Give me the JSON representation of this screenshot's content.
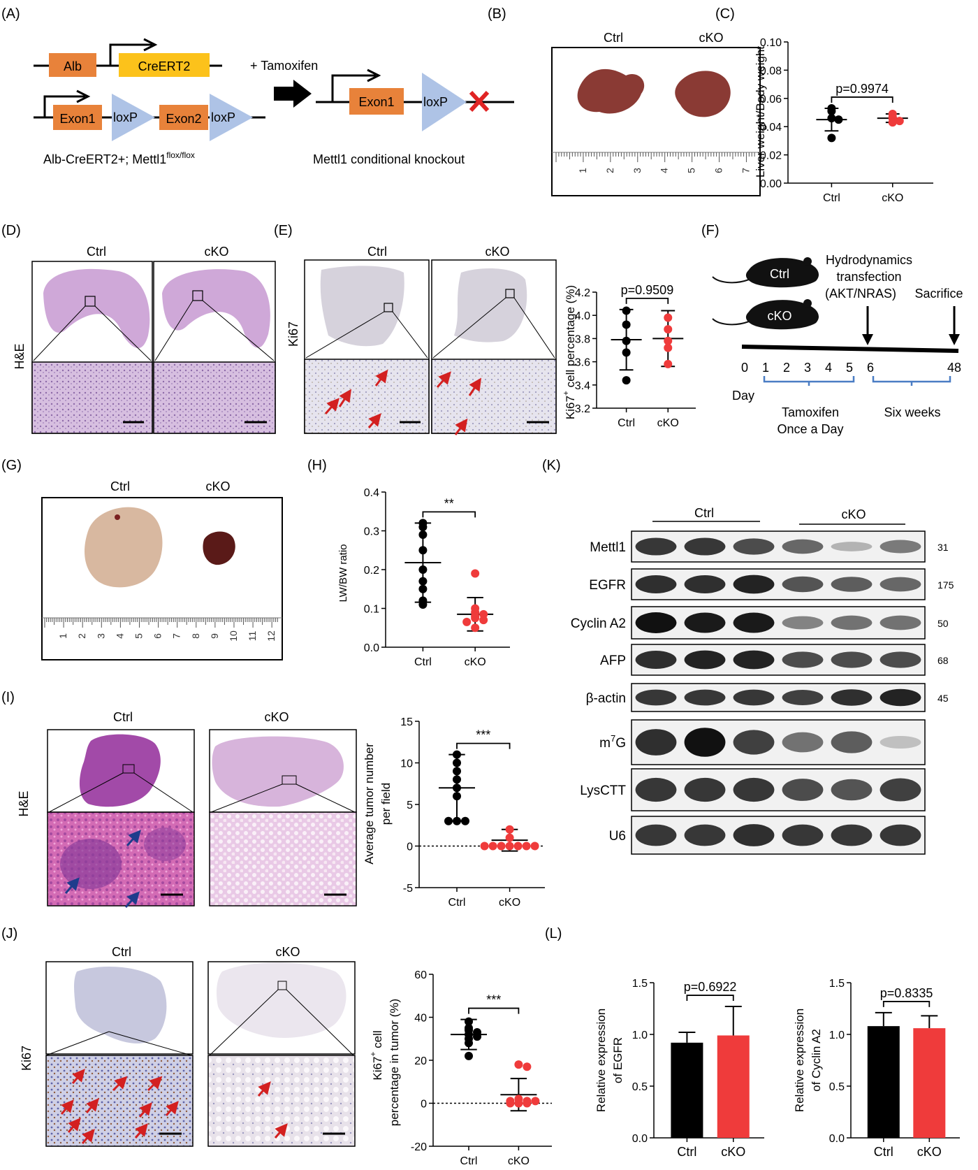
{
  "labels": {
    "A": "(A)",
    "B": "(B)",
    "C": "(C)",
    "D": "(D)",
    "E": "(E)",
    "F": "(F)",
    "G": "(G)",
    "H": "(H)",
    "I": "(I)",
    "J": "(J)",
    "K": "(K)",
    "L": "(L)"
  },
  "groups": {
    "ctrl": "Ctrl",
    "cko": "cKO"
  },
  "colors": {
    "ctrl": "#000000",
    "cko": "#ef3b3b",
    "orange": "#e8823a",
    "yellow": "#fcc21b",
    "loxp": "#aec3e6",
    "he": "#c9a2d4",
    "ihc": "#e9e3ea",
    "bracket": "#4a7dc4"
  },
  "panelA": {
    "alb": "Alb",
    "creert2": "CreERT2",
    "exon1": "Exon1",
    "exon2": "Exon2",
    "loxp": "loxP",
    "tamoxifen": "+ Tamoxifen",
    "genotype_main": "Alb-CreERT2+; Mettl1",
    "genotype_sup": "flox/flox",
    "result": "Mettl1 conditional knockout"
  },
  "panelD": {
    "stain": "H&E"
  },
  "panelE": {
    "stain": "Ki67"
  },
  "panelF": {
    "ctrl": "Ctrl",
    "cko": "cKO",
    "transfection": [
      "Hydrodynamics",
      "transfection",
      "(AKT/NRAS)"
    ],
    "sacrifice": "Sacrifice",
    "days": [
      "0",
      "1",
      "2",
      "3",
      "4",
      "5",
      "6",
      "48"
    ],
    "day_label": "Day",
    "tamoxifen": [
      "Tamoxifen",
      "Once a Day"
    ],
    "six_weeks": "Six weeks"
  },
  "ruler_B": [
    "1",
    "2",
    "3",
    "4",
    "5",
    "6",
    "7"
  ],
  "ruler_G": [
    "1",
    "2",
    "3",
    "4",
    "5",
    "6",
    "7",
    "8",
    "9",
    "10",
    "11",
    "12"
  ],
  "panelI": {
    "stain": "H&E"
  },
  "panelJ": {
    "stain": "Ki67"
  },
  "chart_data": [
    {
      "id": "C",
      "type": "scatter",
      "ylabel": "Liver weight/Body weight",
      "ylim": [
        0,
        0.1
      ],
      "yticks": [
        "0.00",
        "0.02",
        "0.04",
        "0.06",
        "0.08",
        "0.10"
      ],
      "categories": [
        "Ctrl",
        "cKO"
      ],
      "annotation": "p=0.9974",
      "series": [
        {
          "name": "Ctrl",
          "points": [
            0.053,
            0.051,
            0.046,
            0.045,
            0.032
          ],
          "mean": 0.045,
          "sd": 0.008
        },
        {
          "name": "cKO",
          "points": [
            0.049,
            0.047,
            0.046,
            0.044,
            0.043
          ],
          "mean": 0.046,
          "sd": 0.003
        }
      ]
    },
    {
      "id": "E",
      "type": "scatter",
      "ylabel": "Ki67+ cell percentage (%)",
      "ylabel_main": "Ki67",
      "ylabel_sup": "+",
      "ylabel_rest": " cell percentage (%)",
      "ylim": [
        3.2,
        4.2
      ],
      "yticks": [
        "3.2",
        "3.4",
        "3.6",
        "3.8",
        "4.0",
        "4.2"
      ],
      "categories": [
        "Ctrl",
        "cKO"
      ],
      "annotation": "p=0.9509",
      "series": [
        {
          "name": "Ctrl",
          "points": [
            4.04,
            3.92,
            3.78,
            3.68,
            3.44
          ],
          "mean": 3.79,
          "sd": 0.26
        },
        {
          "name": "cKO",
          "points": [
            3.98,
            3.88,
            3.78,
            3.72,
            3.58
          ],
          "mean": 3.8,
          "sd": 0.24
        }
      ]
    },
    {
      "id": "H",
      "type": "scatter",
      "ylabel": "LW/BW ratio",
      "ylim": [
        0,
        0.4
      ],
      "yticks": [
        "0.0",
        "0.1",
        "0.2",
        "0.3",
        "0.4"
      ],
      "categories": [
        "Ctrl",
        "cKO"
      ],
      "annotation": "**",
      "series": [
        {
          "name": "Ctrl",
          "points": [
            0.32,
            0.31,
            0.29,
            0.25,
            0.2,
            0.17,
            0.15,
            0.12,
            0.11
          ],
          "mean": 0.218,
          "sd": 0.102
        },
        {
          "name": "cKO",
          "points": [
            0.19,
            0.1,
            0.09,
            0.085,
            0.08,
            0.075,
            0.07,
            0.065,
            0.05
          ],
          "mean": 0.085,
          "sd": 0.043
        }
      ]
    },
    {
      "id": "I",
      "type": "scatter",
      "ylabel": [
        "Average tumor number",
        "per field"
      ],
      "ylim": [
        -5,
        15
      ],
      "yticks": [
        "-5",
        "0",
        "5",
        "10",
        "15"
      ],
      "categories": [
        "Ctrl",
        "cKO"
      ],
      "annotation": "***",
      "baseline": 0,
      "series": [
        {
          "name": "Ctrl",
          "points": [
            11,
            10,
            9,
            8,
            7,
            6,
            3,
            3,
            3
          ],
          "mean": 7,
          "sd": 4
        },
        {
          "name": "cKO",
          "points": [
            2,
            1,
            0,
            0,
            0,
            0,
            0,
            0,
            0
          ],
          "mean": 0.7,
          "sd": 1.3
        }
      ]
    },
    {
      "id": "J",
      "type": "scatter",
      "ylabel_main": "Ki67",
      "ylabel_sup": "+",
      "ylabel_line1_rest": " cell",
      "ylabel_line2": "percentage in tumor (%)",
      "ylim": [
        -20,
        60
      ],
      "yticks": [
        "-20",
        "0",
        "20",
        "40",
        "60"
      ],
      "categories": [
        "Ctrl",
        "cKO"
      ],
      "annotation": "***",
      "baseline": 0,
      "series": [
        {
          "name": "Ctrl",
          "points": [
            38,
            35,
            34,
            33,
            32,
            31,
            30,
            28,
            22
          ],
          "mean": 32,
          "sd": 7
        },
        {
          "name": "cKO",
          "points": [
            18,
            17,
            2,
            1,
            1,
            1,
            0,
            0,
            0
          ],
          "mean": 4,
          "sd": 7.5
        }
      ]
    },
    {
      "id": "K",
      "type": "table",
      "groups": [
        {
          "name": "Ctrl",
          "lanes": 3
        },
        {
          "name": "cKO",
          "lanes": 3
        }
      ],
      "bands": [
        {
          "name": "Mettl1",
          "mw": "31",
          "intensity": [
            0.8,
            0.8,
            0.7,
            0.55,
            0.15,
            0.45
          ]
        },
        {
          "name": "EGFR",
          "mw": "175",
          "intensity": [
            0.85,
            0.85,
            0.9,
            0.65,
            0.6,
            0.55
          ]
        },
        {
          "name": "Cyclin A2",
          "mw": "50",
          "intensity": [
            1,
            0.95,
            0.95,
            0.4,
            0.5,
            0.5
          ]
        },
        {
          "name": "AFP",
          "mw": "68",
          "intensity": [
            0.85,
            0.9,
            0.9,
            0.7,
            0.7,
            0.7
          ]
        },
        {
          "name": "β-actin",
          "mw": "45",
          "intensity": [
            0.8,
            0.8,
            0.8,
            0.75,
            0.85,
            0.9
          ]
        },
        {
          "name_main": "m",
          "name_sup": "7",
          "name_rest": "G",
          "name": "m7G",
          "mw": "",
          "intensity": [
            0.85,
            1,
            0.75,
            0.5,
            0.6,
            0.08
          ]
        },
        {
          "name": "LysCTT",
          "mw": "",
          "intensity": [
            0.8,
            0.8,
            0.8,
            0.7,
            0.65,
            0.75
          ]
        },
        {
          "name": "U6",
          "mw": "",
          "intensity": [
            0.8,
            0.8,
            0.85,
            0.8,
            0.8,
            0.8
          ]
        }
      ]
    },
    {
      "id": "L1",
      "type": "bar",
      "ylabel": [
        "Relative expression",
        "of EGFR"
      ],
      "ylim": [
        0,
        1.5
      ],
      "yticks": [
        "0.0",
        "0.5",
        "1.0",
        "1.5"
      ],
      "categories": [
        "Ctrl",
        "cKO"
      ],
      "annotation": "p=0.6922",
      "values": [
        0.92,
        0.99
      ],
      "errors": [
        0.1,
        0.28
      ]
    },
    {
      "id": "L2",
      "type": "bar",
      "ylabel": [
        "Relative expression",
        "of Cyclin A2"
      ],
      "ylim": [
        0,
        1.5
      ],
      "yticks": [
        "0.0",
        "0.5",
        "1.0",
        "1.5"
      ],
      "categories": [
        "Ctrl",
        "cKO"
      ],
      "annotation": "p=0.8335",
      "values": [
        1.08,
        1.06
      ],
      "errors": [
        0.13,
        0.12
      ]
    }
  ]
}
